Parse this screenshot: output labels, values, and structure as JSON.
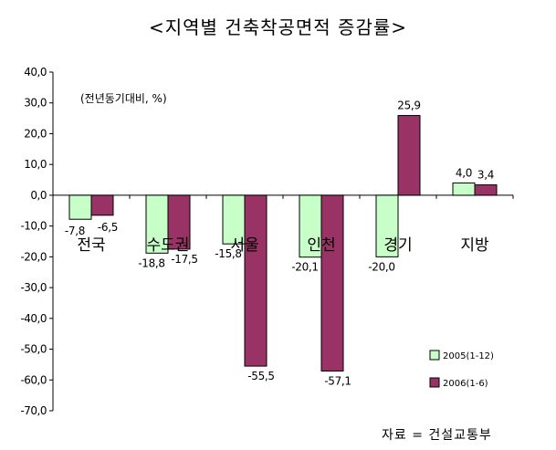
{
  "title": "<지역별 건축착공면적 증감률>",
  "source": "자료 = 건설교통부",
  "chart_data": {
    "type": "bar",
    "title": "<지역별 건축착공면적 증감률>",
    "unit_note": "(전년동기대비, %)",
    "categories": [
      "전국",
      "수도권",
      "서울",
      "인천",
      "경기",
      "지방"
    ],
    "series": [
      {
        "name": "2005(1-12)",
        "color": "#c8ffc8",
        "values": [
          -7.8,
          -18.8,
          -15.8,
          -20.1,
          -20.0,
          4.0
        ],
        "labels": [
          "-7,8",
          "-18,8",
          "-15,8",
          "-20,1",
          "-20,0",
          "4,0"
        ]
      },
      {
        "name": "2006(1-6)",
        "color": "#993366",
        "values": [
          -6.5,
          -17.5,
          -55.5,
          -57.1,
          25.9,
          3.4
        ],
        "labels": [
          "-6,5",
          "-17,5",
          "-55,5",
          "-57,1",
          "25,9",
          "3,4"
        ]
      }
    ],
    "ylim": [
      -70,
      40
    ],
    "yticks": [
      40,
      30,
      20,
      10,
      0,
      -10,
      -20,
      -30,
      -40,
      -50,
      -60,
      -70
    ],
    "ytick_labels": [
      "40,0",
      "30,0",
      "20,0",
      "10,0",
      "0,0",
      "-10,0",
      "-20,0",
      "-30,0",
      "-40,0",
      "-50,0",
      "-60,0",
      "-70,0"
    ],
    "legend_position": "bottom-right",
    "grid": false
  }
}
